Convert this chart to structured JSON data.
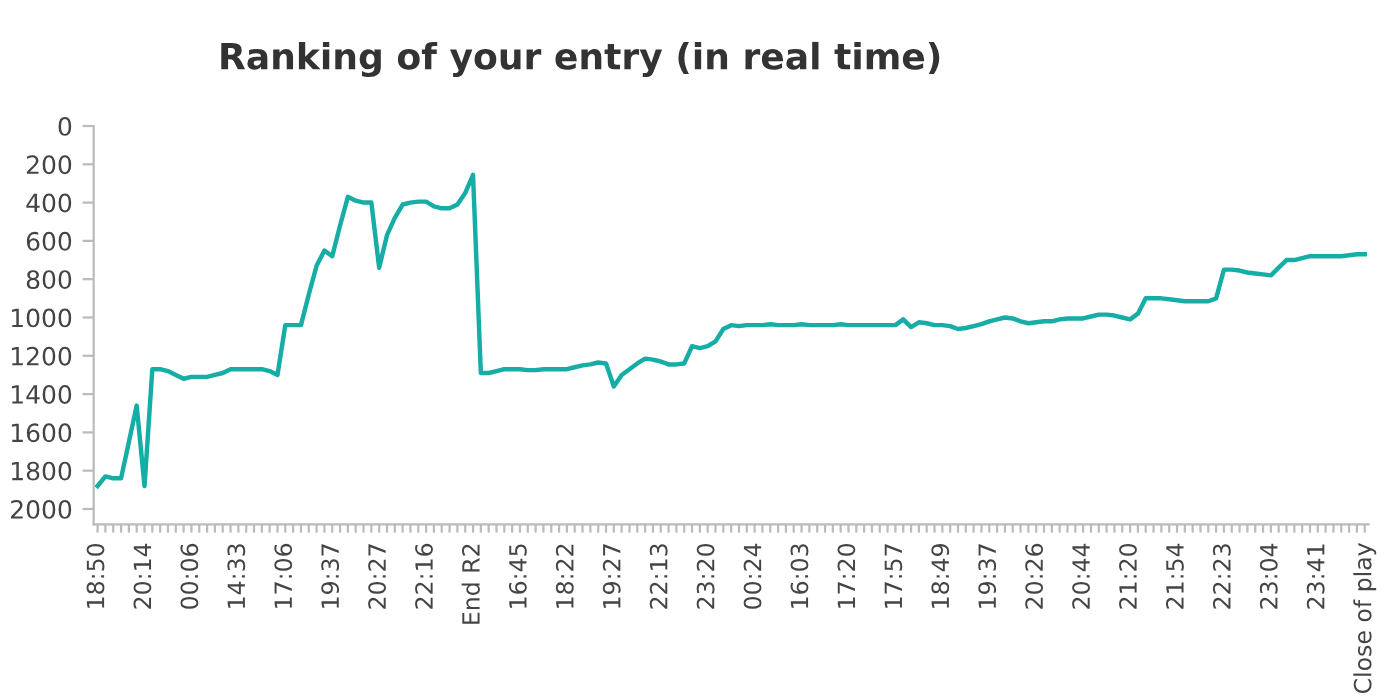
{
  "chart_data": {
    "type": "line",
    "title": "Ranking of your entry (in real time)",
    "categories": [
      "18:50",
      null,
      null,
      null,
      null,
      null,
      "20:14",
      null,
      null,
      null,
      null,
      null,
      "00:06",
      null,
      null,
      null,
      null,
      null,
      "14:33",
      null,
      null,
      null,
      null,
      null,
      "17:06",
      null,
      null,
      null,
      null,
      null,
      "19:37",
      null,
      null,
      null,
      null,
      null,
      "20:27",
      null,
      null,
      null,
      null,
      null,
      "22:16",
      null,
      null,
      null,
      null,
      null,
      "End R2",
      null,
      null,
      null,
      null,
      null,
      "16:45",
      null,
      null,
      null,
      null,
      null,
      "18:22",
      null,
      null,
      null,
      null,
      null,
      "19:27",
      null,
      null,
      null,
      null,
      null,
      "22:13",
      null,
      null,
      null,
      null,
      null,
      "23:20",
      null,
      null,
      null,
      null,
      null,
      "00:24",
      null,
      null,
      null,
      null,
      null,
      "16:03",
      null,
      null,
      null,
      null,
      null,
      "17:20",
      null,
      null,
      null,
      null,
      null,
      "17:57",
      null,
      null,
      null,
      null,
      null,
      "18:49",
      null,
      null,
      null,
      null,
      null,
      "19:37",
      null,
      null,
      null,
      null,
      null,
      "20:26",
      null,
      null,
      null,
      null,
      null,
      "20:44",
      null,
      null,
      null,
      null,
      null,
      "21:20",
      null,
      null,
      null,
      null,
      null,
      "21:54",
      null,
      null,
      null,
      null,
      null,
      "22:23",
      null,
      null,
      null,
      null,
      null,
      "23:04",
      null,
      null,
      null,
      null,
      null,
      "23:41",
      null,
      null,
      null,
      null,
      null,
      "Close of play"
    ],
    "series": [
      {
        "color": "#16ada6",
        "values": [
          1880,
          1830,
          1840,
          1840,
          1650,
          1460,
          1880,
          1270,
          1270,
          1280,
          1300,
          1320,
          1310,
          1310,
          1310,
          1300,
          1290,
          1270,
          1270,
          1270,
          1270,
          1270,
          1280,
          1300,
          1040,
          1040,
          1040,
          880,
          730,
          650,
          680,
          520,
          370,
          390,
          400,
          400,
          740,
          570,
          480,
          410,
          400,
          395,
          395,
          420,
          430,
          430,
          410,
          350,
          255,
          1290,
          1290,
          1280,
          1270,
          1270,
          1270,
          1275,
          1275,
          1270,
          1270,
          1270,
          1270,
          1260,
          1250,
          1245,
          1235,
          1240,
          1360,
          1300,
          1270,
          1240,
          1215,
          1220,
          1230,
          1245,
          1245,
          1240,
          1150,
          1160,
          1150,
          1125,
          1060,
          1040,
          1045,
          1040,
          1040,
          1040,
          1035,
          1040,
          1040,
          1040,
          1035,
          1040,
          1040,
          1040,
          1040,
          1035,
          1040,
          1040,
          1040,
          1040,
          1040,
          1040,
          1040,
          1010,
          1050,
          1025,
          1030,
          1040,
          1040,
          1045,
          1060,
          1055,
          1045,
          1035,
          1020,
          1010,
          1000,
          1005,
          1020,
          1030,
          1025,
          1020,
          1020,
          1010,
          1005,
          1005,
          1005,
          995,
          985,
          985,
          990,
          1000,
          1010,
          980,
          900,
          900,
          900,
          905,
          910,
          915,
          915,
          915,
          915,
          900,
          750,
          750,
          755,
          765,
          770,
          775,
          780,
          740,
          700,
          700,
          690,
          680,
          680,
          680,
          680,
          680,
          675,
          670,
          670
        ]
      }
    ],
    "ylim": [
      2080,
      0
    ],
    "yticks": [
      0,
      200,
      400,
      600,
      800,
      1000,
      1200,
      1400,
      1600,
      1800,
      2000
    ],
    "grid": false,
    "legend": false,
    "marker": "none",
    "line_style": "solid"
  }
}
